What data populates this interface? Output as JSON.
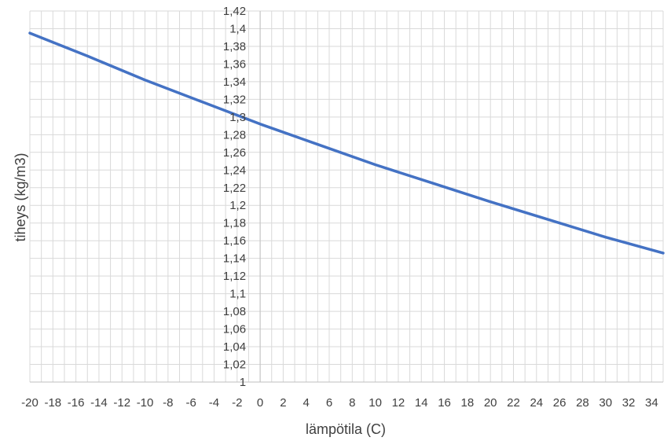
{
  "chart_data": {
    "type": "line",
    "title": "",
    "xlabel": "lämpötila (C)",
    "ylabel": "tiheys (kg/m3)",
    "xlim": [
      -20,
      35
    ],
    "ylim": [
      1,
      1.42
    ],
    "x_ticks": [
      "-20",
      "-18",
      "-16",
      "-14",
      "-12",
      "-10",
      "-8",
      "-6",
      "-4",
      "-2",
      "0",
      "2",
      "4",
      "6",
      "8",
      "10",
      "12",
      "14",
      "16",
      "18",
      "20",
      "22",
      "24",
      "26",
      "28",
      "30",
      "32",
      "34"
    ],
    "y_ticks": [
      "1",
      "1,02",
      "1,04",
      "1,06",
      "1,08",
      "1,1",
      "1,12",
      "1,14",
      "1,16",
      "1,18",
      "1,2",
      "1,22",
      "1,24",
      "1,26",
      "1,28",
      "1,3",
      "1,32",
      "1,34",
      "1,36",
      "1,38",
      "1,4",
      "1,42"
    ],
    "grid": true,
    "series": [
      {
        "color": "#4472c4",
        "x": [
          -20,
          -15,
          -10,
          -5,
          0,
          5,
          10,
          15,
          20,
          25,
          30,
          35
        ],
        "y": [
          1.395,
          1.369,
          1.342,
          1.317,
          1.292,
          1.269,
          1.246,
          1.225,
          1.204,
          1.184,
          1.164,
          1.146
        ]
      }
    ]
  }
}
